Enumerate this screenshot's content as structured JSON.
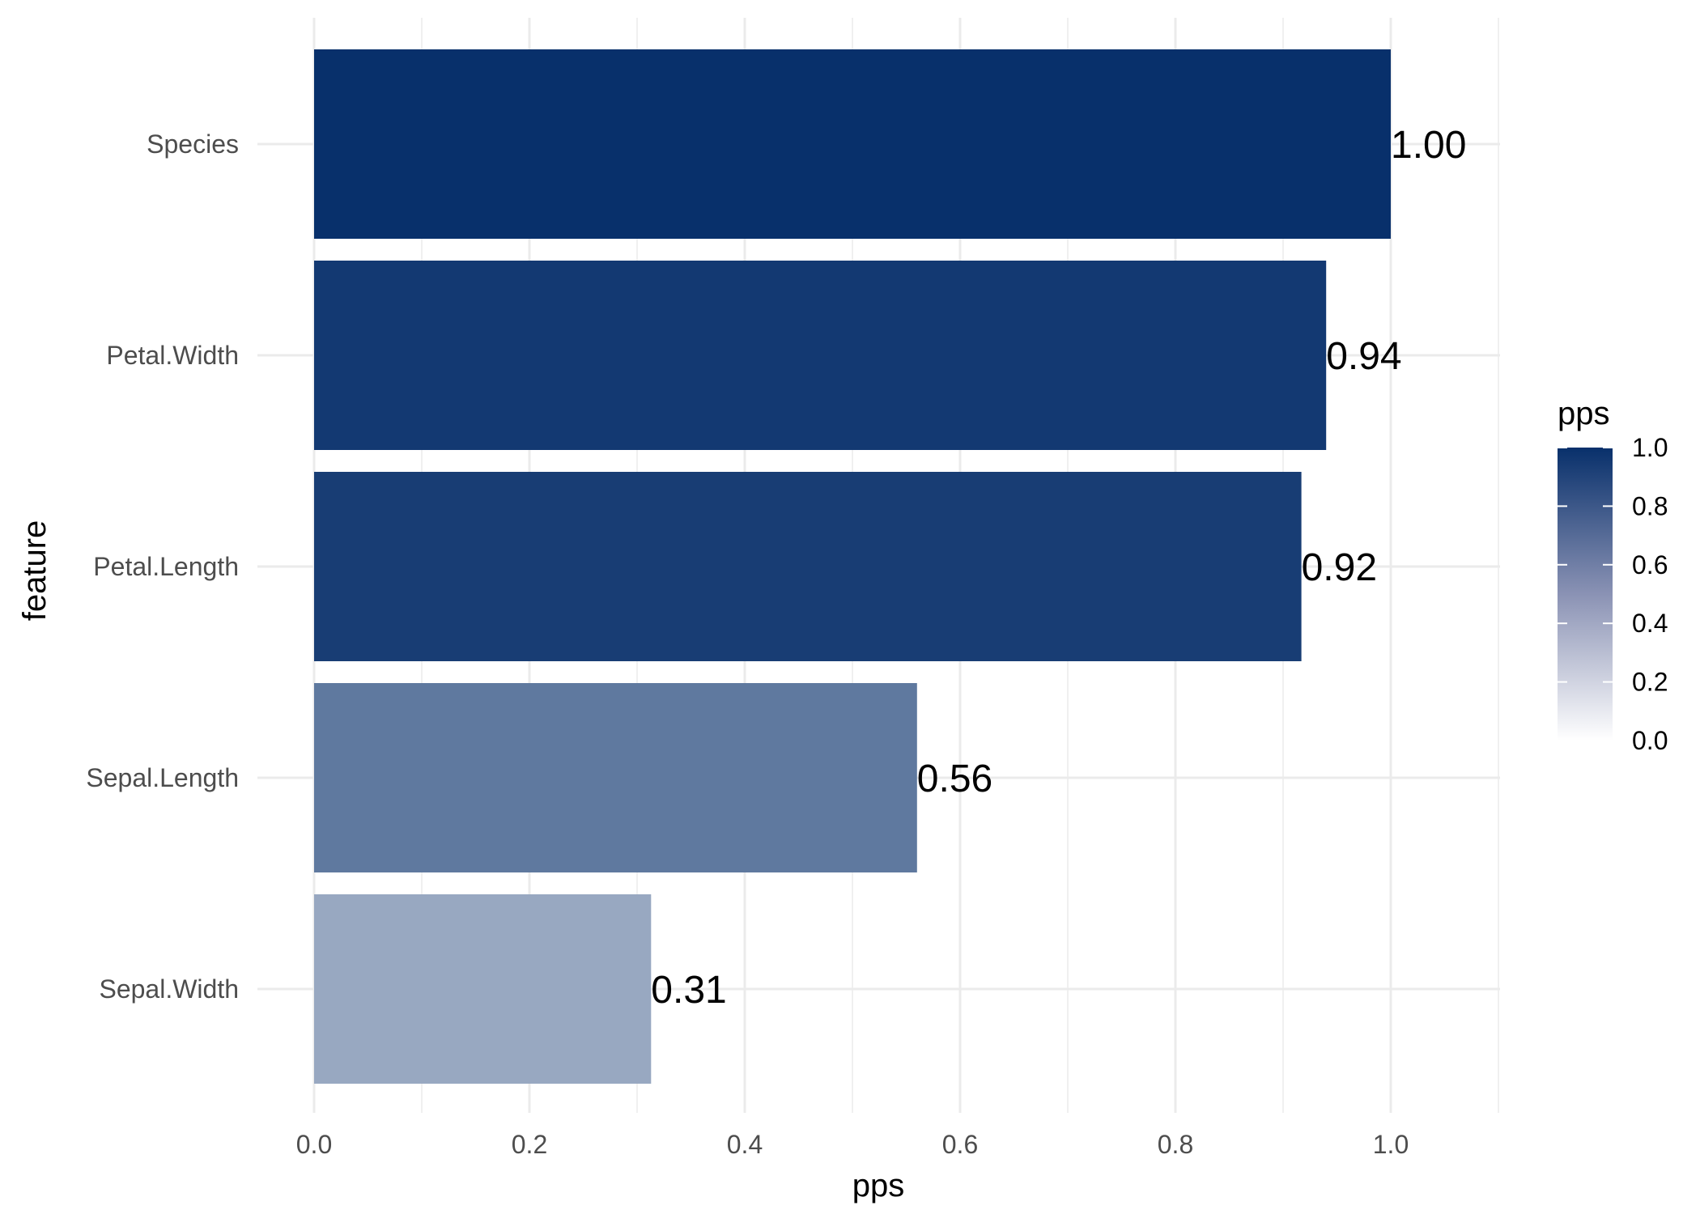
{
  "chart_data": {
    "type": "bar",
    "orientation": "horizontal",
    "categories": [
      "Species",
      "Petal.Width",
      "Petal.Length",
      "Sepal.Length",
      "Sepal.Width"
    ],
    "values": [
      1.0,
      0.94,
      0.917,
      0.56,
      0.313
    ],
    "data_labels": [
      "1.00",
      "0.94",
      "0.92",
      "0.56",
      "0.31"
    ],
    "xlabel": "pps",
    "ylabel": "feature",
    "xlim": [
      0,
      1.1
    ],
    "x_ticks": [
      "0.0",
      "0.2",
      "0.4",
      "0.6",
      "0.8",
      "1.0"
    ],
    "x_tick_values": [
      0,
      0.2,
      0.4,
      0.6,
      0.8,
      1.0
    ],
    "grid": true,
    "color_scale": {
      "low": "#ffffff",
      "high": "#08306b"
    },
    "legend": {
      "title": "pps",
      "placement": "right",
      "ticks": [
        "1.0",
        "0.8",
        "0.6",
        "0.4",
        "0.2",
        "0.0"
      ],
      "tick_values": [
        1.0,
        0.8,
        0.6,
        0.4,
        0.2,
        0.0
      ]
    }
  }
}
